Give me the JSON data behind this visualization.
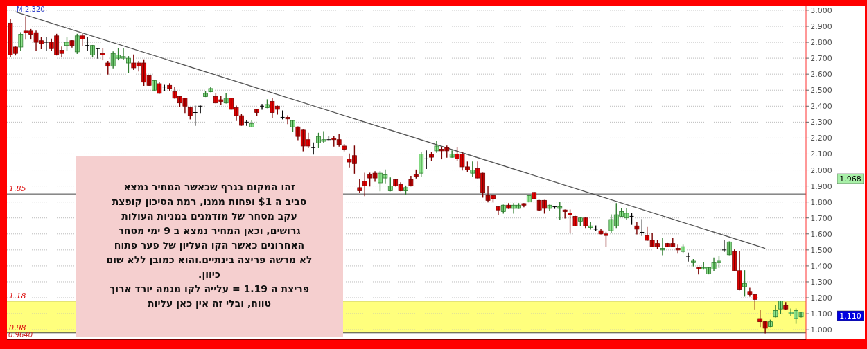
{
  "chart_data": {
    "type": "candlestick",
    "categories": [
      null,
      null,
      null,
      null,
      null,
      null,
      null,
      null,
      null,
      null,
      null,
      null,
      null,
      null,
      null,
      null,
      null,
      null,
      null,
      null,
      null,
      null,
      null,
      null,
      null,
      null,
      null,
      null,
      null,
      null,
      null,
      null,
      null,
      null,
      null,
      null,
      null,
      null,
      null,
      null,
      null,
      null,
      null,
      null,
      null,
      null,
      null,
      null,
      null,
      null,
      null,
      null,
      null,
      null,
      null,
      null,
      null,
      null,
      null,
      null,
      null,
      null,
      null,
      null,
      null,
      null,
      null,
      null,
      null,
      null,
      null,
      null,
      null,
      null,
      null,
      null,
      null,
      null,
      null,
      null,
      null,
      null,
      null,
      null,
      null,
      null,
      null,
      null,
      null,
      null,
      null,
      null,
      null,
      null,
      null,
      null,
      null,
      null,
      null,
      null,
      null,
      null,
      null,
      null,
      null,
      null,
      null,
      null,
      null,
      null,
      null,
      null,
      null,
      null,
      null,
      null,
      null,
      null,
      null,
      null,
      null,
      null,
      null,
      null,
      null,
      null,
      null,
      null,
      null,
      null,
      null,
      null,
      null,
      null,
      null,
      null,
      null,
      null,
      null,
      null,
      null,
      null,
      null,
      null,
      null,
      null,
      null,
      null,
      null,
      null,
      null,
      null,
      null,
      null,
      null
    ],
    "ohlc": [
      [
        2.92,
        2.94,
        2.71,
        2.72
      ],
      [
        2.77,
        2.77,
        2.72,
        2.73
      ],
      [
        2.77,
        2.86,
        2.75,
        2.85
      ],
      [
        2.87,
        2.96,
        2.82,
        2.86
      ],
      [
        2.87,
        2.88,
        2.82,
        2.85
      ],
      [
        2.86,
        2.87,
        2.75,
        2.8
      ],
      [
        2.81,
        2.83,
        2.76,
        2.79
      ],
      [
        2.8,
        2.83,
        2.75,
        2.8
      ],
      [
        2.8,
        2.82,
        2.75,
        2.76
      ],
      [
        2.84,
        2.85,
        2.72,
        2.72
      ],
      [
        2.75,
        2.77,
        2.71,
        2.73
      ],
      [
        2.78,
        2.83,
        2.75,
        2.8
      ],
      [
        2.81,
        2.81,
        2.77,
        2.78
      ],
      [
        2.74,
        2.85,
        2.73,
        2.84
      ],
      [
        2.84,
        2.85,
        2.78,
        2.82
      ],
      [
        2.78,
        2.83,
        2.75,
        2.78
      ],
      [
        2.72,
        2.78,
        2.71,
        2.78
      ],
      [
        2.76,
        2.76,
        2.7,
        2.76
      ],
      [
        2.73,
        2.76,
        2.69,
        2.72
      ],
      [
        2.67,
        2.68,
        2.6,
        2.65
      ],
      [
        2.65,
        2.74,
        2.64,
        2.73
      ],
      [
        2.7,
        2.76,
        2.69,
        2.72
      ],
      [
        2.7,
        2.76,
        2.69,
        2.71
      ],
      [
        2.67,
        2.71,
        2.61,
        2.7
      ],
      [
        2.67,
        2.72,
        2.63,
        2.64
      ],
      [
        2.67,
        2.68,
        2.62,
        2.65
      ],
      [
        2.67,
        2.69,
        2.53,
        2.55
      ],
      [
        2.59,
        2.59,
        2.53,
        2.53
      ],
      [
        2.5,
        2.56,
        2.5,
        2.56
      ],
      [
        2.54,
        2.55,
        2.48,
        2.48
      ],
      [
        2.52,
        2.53,
        2.5,
        2.52
      ],
      [
        2.53,
        2.54,
        2.5,
        2.51
      ],
      [
        2.49,
        2.52,
        2.45,
        2.45
      ],
      [
        2.46,
        2.46,
        2.4,
        2.42
      ],
      [
        2.45,
        2.45,
        2.36,
        2.4
      ],
      [
        2.39,
        2.39,
        2.32,
        2.34
      ],
      [
        2.36,
        2.4,
        2.28,
        2.36
      ],
      [
        2.4,
        2.4,
        2.36,
        2.4
      ],
      [
        2.46,
        2.49,
        2.46,
        2.48
      ],
      [
        2.49,
        2.52,
        2.49,
        2.51
      ],
      [
        2.46,
        2.48,
        2.42,
        2.42
      ],
      [
        2.44,
        2.46,
        2.41,
        2.43
      ],
      [
        2.42,
        2.48,
        2.42,
        2.45
      ],
      [
        2.45,
        2.45,
        2.38,
        2.38
      ],
      [
        2.39,
        2.4,
        2.31,
        2.34
      ],
      [
        2.34,
        2.35,
        2.28,
        2.28
      ],
      [
        2.3,
        2.31,
        2.28,
        2.3
      ],
      [
        2.27,
        2.31,
        2.27,
        2.29
      ],
      [
        2.38,
        2.38,
        2.34,
        2.36
      ],
      [
        2.4,
        2.41,
        2.38,
        2.4
      ],
      [
        2.39,
        2.44,
        2.39,
        2.41
      ],
      [
        2.43,
        2.45,
        2.33,
        2.36
      ],
      [
        2.4,
        2.4,
        2.35,
        2.38
      ],
      [
        2.33,
        2.37,
        2.32,
        2.33
      ],
      [
        2.33,
        2.34,
        2.29,
        2.32
      ],
      [
        2.27,
        2.31,
        2.24,
        2.31
      ],
      [
        2.27,
        2.27,
        2.19,
        2.21
      ],
      [
        2.25,
        2.25,
        2.12,
        2.15
      ],
      [
        2.19,
        2.23,
        2.14,
        2.15
      ],
      [
        2.14,
        2.17,
        2.1,
        2.14
      ],
      [
        2.17,
        2.23,
        2.14,
        2.21
      ],
      [
        2.18,
        2.24,
        2.17,
        2.19
      ],
      [
        2.19,
        2.21,
        2.19,
        2.19
      ],
      [
        2.2,
        2.21,
        2.15,
        2.19
      ],
      [
        2.19,
        2.22,
        2.15,
        2.16
      ],
      [
        2.15,
        2.16,
        2.12,
        2.13
      ],
      [
        2.07,
        2.1,
        2.02,
        2.05
      ],
      [
        2.09,
        2.15,
        1.98,
        2.04
      ],
      [
        1.89,
        1.94,
        1.86,
        1.87
      ],
      [
        1.93,
        1.98,
        1.84,
        1.9
      ],
      [
        1.97,
        1.98,
        1.9,
        1.95
      ],
      [
        1.98,
        1.99,
        1.93,
        1.95
      ],
      [
        1.92,
        1.99,
        1.87,
        1.98
      ],
      [
        1.95,
        2.0,
        1.92,
        1.97
      ],
      [
        1.87,
        1.95,
        1.87,
        1.9
      ],
      [
        1.94,
        1.94,
        1.9,
        1.9
      ],
      [
        1.91,
        1.92,
        1.87,
        1.87
      ],
      [
        1.87,
        1.9,
        1.85,
        1.89
      ],
      [
        1.94,
        1.96,
        1.9,
        1.9
      ],
      [
        1.97,
        2.0,
        1.95,
        1.96
      ],
      [
        1.98,
        2.11,
        1.96,
        2.1
      ],
      [
        2.07,
        2.12,
        2.01,
        2.07
      ],
      [
        2.1,
        2.11,
        2.06,
        2.08
      ],
      [
        2.12,
        2.18,
        2.11,
        2.15
      ],
      [
        2.13,
        2.14,
        2.07,
        2.12
      ],
      [
        2.14,
        2.15,
        2.08,
        2.12
      ],
      [
        2.08,
        2.12,
        2.08,
        2.1
      ],
      [
        2.1,
        2.14,
        2.06,
        2.07
      ],
      [
        2.1,
        2.11,
        2.0,
        2.02
      ],
      [
        2.02,
        2.05,
        1.99,
        2.0
      ],
      [
        1.98,
        2.05,
        1.96,
        2.0
      ],
      [
        2.01,
        2.05,
        1.95,
        1.95
      ],
      [
        1.98,
        1.98,
        1.83,
        1.86
      ],
      [
        1.84,
        1.9,
        1.8,
        1.81
      ],
      [
        1.84,
        1.84,
        1.8,
        1.82
      ],
      [
        1.77,
        1.77,
        1.72,
        1.75
      ],
      [
        1.74,
        1.78,
        1.73,
        1.78
      ],
      [
        1.78,
        1.79,
        1.76,
        1.76
      ],
      [
        1.76,
        1.79,
        1.73,
        1.78
      ],
      [
        1.76,
        1.79,
        1.76,
        1.78
      ],
      [
        1.79,
        1.79,
        1.77,
        1.78
      ],
      [
        1.8,
        1.84,
        1.8,
        1.84
      ],
      [
        1.86,
        1.86,
        1.82,
        1.82
      ],
      [
        1.81,
        1.81,
        1.75,
        1.75
      ],
      [
        1.81,
        1.81,
        1.73,
        1.76
      ],
      [
        1.76,
        1.78,
        1.75,
        1.78
      ],
      [
        1.77,
        1.77,
        1.76,
        1.77
      ],
      [
        1.76,
        1.8,
        1.69,
        1.77
      ],
      [
        1.75,
        1.75,
        1.7,
        1.74
      ],
      [
        1.73,
        1.75,
        1.61,
        1.72
      ],
      [
        1.71,
        1.71,
        1.65,
        1.65
      ],
      [
        1.68,
        1.7,
        1.65,
        1.7
      ],
      [
        1.7,
        1.7,
        1.64,
        1.65
      ],
      [
        1.64,
        1.67,
        1.63,
        1.65
      ],
      [
        1.63,
        1.65,
        1.62,
        1.63
      ],
      [
        1.62,
        1.63,
        1.6,
        1.6
      ],
      [
        1.6,
        1.61,
        1.52,
        1.59
      ],
      [
        1.62,
        1.72,
        1.61,
        1.69
      ],
      [
        1.65,
        1.79,
        1.64,
        1.72
      ],
      [
        1.71,
        1.76,
        1.71,
        1.74
      ],
      [
        1.7,
        1.76,
        1.69,
        1.73
      ],
      [
        1.71,
        1.73,
        1.66,
        1.71
      ],
      [
        1.65,
        1.67,
        1.6,
        1.63
      ],
      [
        1.61,
        1.69,
        1.59,
        1.61
      ],
      [
        1.59,
        1.64,
        1.56,
        1.56
      ],
      [
        1.56,
        1.6,
        1.52,
        1.52
      ],
      [
        1.54,
        1.56,
        1.51,
        1.52
      ],
      [
        1.5,
        1.57,
        1.47,
        1.51
      ],
      [
        1.54,
        1.54,
        1.52,
        1.52
      ],
      [
        1.54,
        1.57,
        1.52,
        1.52
      ],
      [
        1.51,
        1.53,
        1.48,
        1.5
      ],
      [
        1.49,
        1.53,
        1.48,
        1.52
      ],
      [
        1.46,
        1.48,
        1.43,
        1.46
      ],
      [
        1.42,
        1.44,
        1.4,
        1.43
      ],
      [
        1.39,
        1.39,
        1.35,
        1.38
      ],
      [
        1.38,
        1.42,
        1.38,
        1.39
      ],
      [
        1.35,
        1.39,
        1.35,
        1.39
      ],
      [
        1.38,
        1.45,
        1.37,
        1.42
      ],
      [
        1.42,
        1.46,
        1.39,
        1.43
      ],
      [
        1.5,
        1.56,
        1.49,
        1.5
      ],
      [
        1.47,
        1.55,
        1.47,
        1.55
      ],
      [
        1.49,
        1.5,
        1.37,
        1.37
      ],
      [
        1.37,
        1.49,
        1.25,
        1.25
      ],
      [
        1.27,
        1.37,
        1.21,
        1.29
      ],
      [
        1.24,
        1.26,
        1.21,
        1.22
      ],
      [
        1.22,
        1.22,
        1.13,
        1.19
      ],
      [
        1.07,
        1.12,
        1.02,
        1.05
      ],
      [
        1.05,
        1.05,
        0.98,
        1.01
      ],
      [
        1.02,
        1.06,
        1.02,
        1.05
      ],
      [
        1.08,
        1.15,
        1.08,
        1.12
      ],
      [
        1.13,
        1.18,
        1.1,
        1.18
      ],
      [
        1.15,
        1.17,
        1.13,
        1.13
      ],
      [
        1.1,
        1.13,
        1.09,
        1.11
      ],
      [
        1.07,
        1.13,
        1.04,
        1.12
      ],
      [
        1.08,
        1.11,
        1.08,
        1.11
      ]
    ],
    "series": [
      {
        "type": "line",
        "color": "#555555",
        "values": [
          null,
          2.99,
          null,
          null,
          null,
          null,
          null,
          null,
          null,
          null,
          null,
          null,
          null,
          null,
          null,
          null,
          null,
          null,
          null,
          null,
          null,
          null,
          null,
          null,
          null,
          null,
          null,
          null,
          null,
          null,
          null,
          null,
          null,
          null,
          null,
          null,
          null,
          null,
          null,
          null,
          null,
          null,
          null,
          null,
          null,
          null,
          null,
          null,
          null,
          null,
          null,
          null,
          null,
          null,
          null,
          null,
          null,
          null,
          null,
          null,
          null,
          null,
          null,
          null,
          null,
          null,
          null,
          null,
          null,
          null,
          null,
          null,
          null,
          null,
          null,
          null,
          null,
          null,
          null,
          null,
          null,
          null,
          null,
          null,
          null,
          null,
          null,
          null,
          null,
          null,
          null,
          null,
          null,
          null,
          null,
          null,
          null,
          null,
          null,
          null,
          null,
          null,
          null,
          null,
          null,
          null,
          null,
          null,
          null,
          null,
          null,
          null,
          null,
          null,
          null,
          null,
          null,
          null,
          null,
          null,
          null,
          null,
          null,
          null,
          null,
          null,
          null,
          null,
          null,
          null,
          null,
          null,
          null,
          null,
          null,
          null,
          null,
          null,
          null,
          null,
          null,
          null,
          null,
          null,
          null,
          null,
          null,
          1.51,
          null,
          null,
          null,
          null,
          null,
          null,
          null
        ]
      }
    ],
    "ylim": [
      0.94,
      3.03
    ],
    "yticks": [
      {
        "value": 1,
        "label": "1.000"
      },
      {
        "value": 1.1,
        "label": "1.100"
      },
      {
        "value": 1.2,
        "label": "1.200"
      },
      {
        "value": 1.3,
        "label": "1.300"
      },
      {
        "value": 1.4,
        "label": "1.400"
      },
      {
        "value": 1.5,
        "label": "1.500"
      },
      {
        "value": 1.6,
        "label": "1.600"
      },
      {
        "value": 1.7,
        "label": "1.700"
      },
      {
        "value": 1.8,
        "label": "1.800"
      },
      {
        "value": 1.9,
        "label": "1.900"
      },
      {
        "value": 2,
        "label": "2.000"
      },
      {
        "value": 2.1,
        "label": "2.100"
      },
      {
        "value": 2.2,
        "label": "2.200"
      },
      {
        "value": 2.3,
        "label": "2.300"
      },
      {
        "value": 2.4,
        "label": "2.400"
      },
      {
        "value": 2.5,
        "label": "2.500"
      },
      {
        "value": 2.6,
        "label": "2.600"
      },
      {
        "value": 2.7,
        "label": "2.700"
      },
      {
        "value": 2.8,
        "label": "2.800"
      },
      {
        "value": 2.9,
        "label": "2.900"
      },
      {
        "value": 3,
        "label": "3.000"
      }
    ],
    "grid": "y",
    "ref_lines": [
      {
        "axis": "y",
        "value": 1.85,
        "label": "1.85",
        "color": "#444444"
      },
      {
        "axis": "y",
        "value": 1.18,
        "label": "1.18",
        "color": "#444444"
      },
      {
        "axis": "y",
        "value": 0.98,
        "label": "0.98",
        "color": "#444444"
      }
    ],
    "bands": [
      {
        "axis": "y",
        "from": 0.98,
        "to": 1.18,
        "color": "#ffff66"
      }
    ],
    "annotations": [
      "M:2.320",
      "1.968",
      "1.110",
      "0.9640",
      "זהו המקום בגרף  שכאשר המחיר  נמצא\nסביב ה $1  ופחות ממנו,  רמת  הסיכון קופצת\nעקב  מסחר של מזדמנים  במניות  העולות\nגרושים, וכאן  המחיר  נמצא  ב  9 ימי מסחר\nהאחרונים  כאשר  הקו  העליון  של פער  פתוח\nלא מרשה  פריצה  בינתיים.והוא  כמובן ללא  שום\nכיוון.\nפריצת ה  1.19  =  עלייה לקו מגמה  יורד  ארוך\nטווח, ובלי  זה  אין  כאן עליות"
    ]
  }
}
